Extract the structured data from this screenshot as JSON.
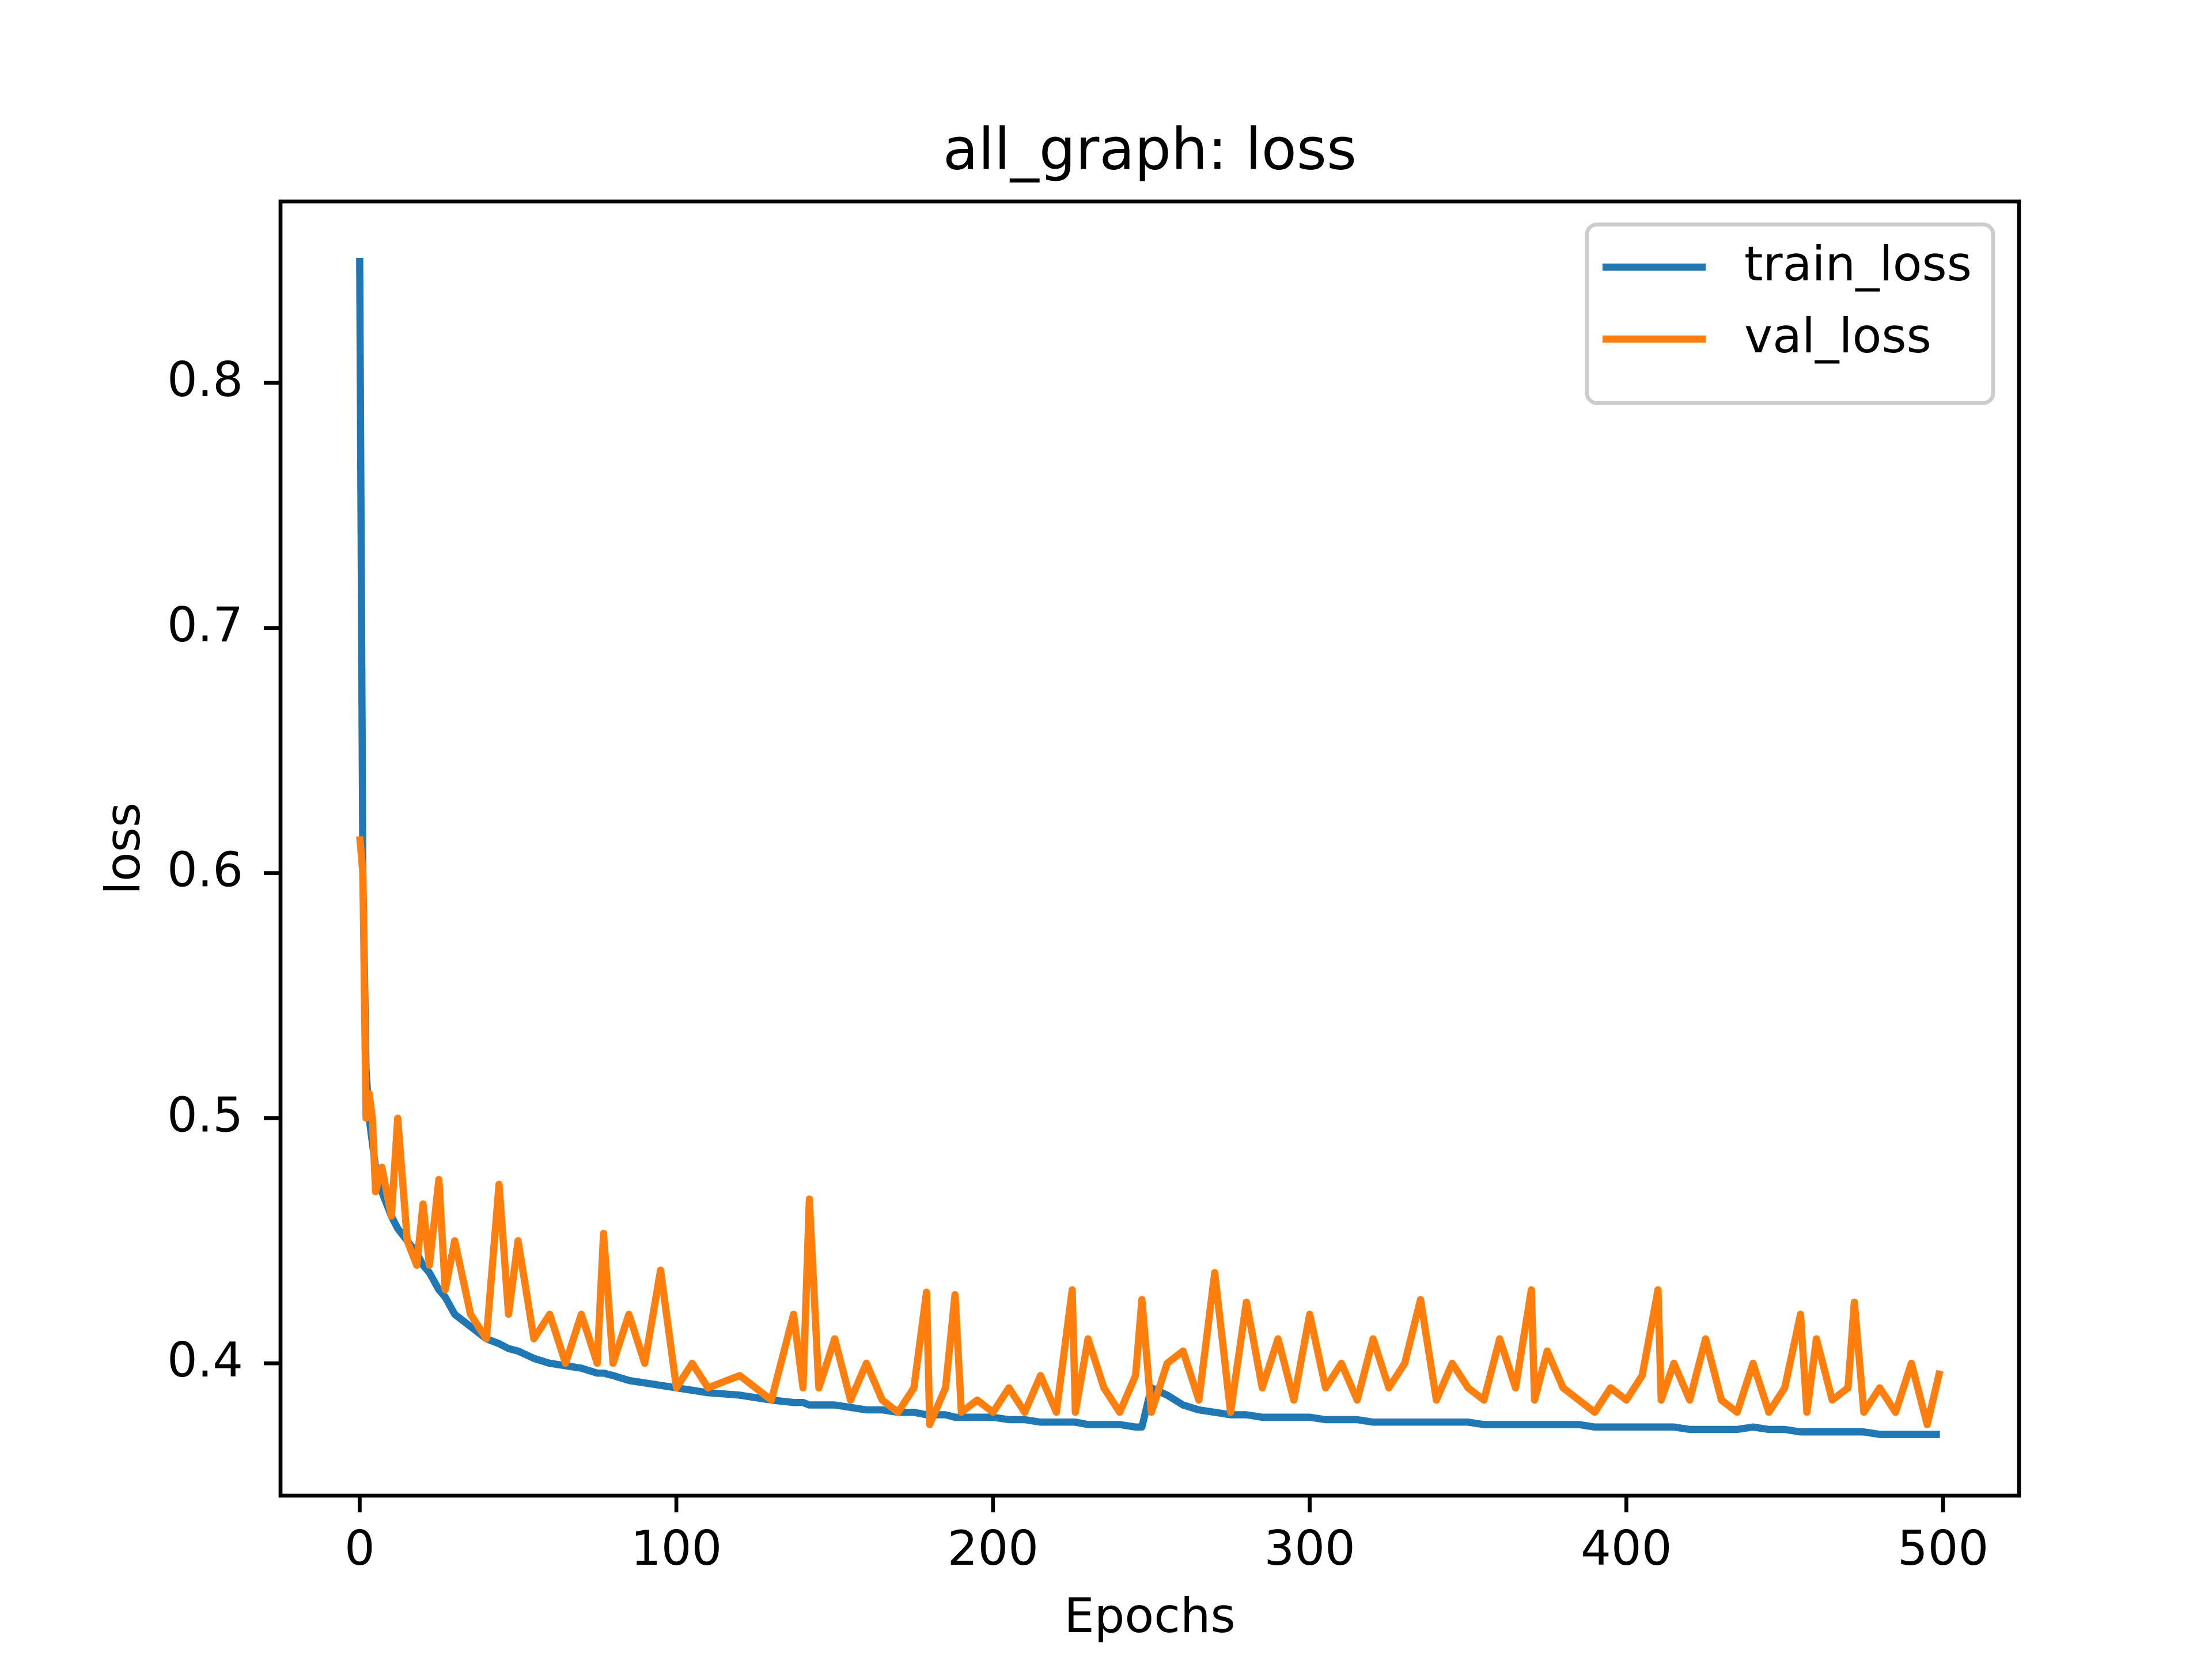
{
  "chart_data": {
    "type": "line",
    "title": "all_graph: loss",
    "xlabel": "Epochs",
    "ylabel": "loss",
    "x": [
      0,
      1,
      2,
      3,
      4,
      5,
      7,
      10,
      12,
      15,
      18,
      20,
      22,
      25,
      27,
      30,
      35,
      40,
      44,
      47,
      50,
      55,
      60,
      65,
      70,
      75,
      77,
      80,
      85,
      90,
      95,
      100,
      105,
      110,
      120,
      130,
      137,
      140,
      142,
      145,
      150,
      155,
      160,
      165,
      170,
      175,
      179,
      180,
      185,
      188,
      190,
      195,
      200,
      205,
      210,
      215,
      220,
      225,
      226,
      230,
      235,
      240,
      245,
      247,
      250,
      255,
      260,
      265,
      270,
      275,
      280,
      285,
      290,
      295,
      300,
      305,
      310,
      315,
      320,
      325,
      330,
      335,
      340,
      345,
      350,
      355,
      360,
      365,
      370,
      371,
      375,
      380,
      385,
      390,
      395,
      400,
      405,
      410,
      411,
      415,
      420,
      425,
      430,
      435,
      440,
      445,
      450,
      455,
      457,
      460,
      465,
      470,
      472,
      475,
      480,
      485,
      490,
      495,
      499
    ],
    "series": [
      {
        "name": "train_loss",
        "color": "#1f77b4",
        "values": [
          0.851,
          0.6,
          0.52,
          0.5,
          0.49,
          0.48,
          0.47,
          0.46,
          0.455,
          0.45,
          0.445,
          0.44,
          0.437,
          0.43,
          0.427,
          0.42,
          0.415,
          0.41,
          0.408,
          0.406,
          0.405,
          0.402,
          0.4,
          0.399,
          0.398,
          0.396,
          0.396,
          0.395,
          0.393,
          0.392,
          0.391,
          0.39,
          0.389,
          0.388,
          0.387,
          0.385,
          0.384,
          0.384,
          0.383,
          0.383,
          0.383,
          0.382,
          0.381,
          0.381,
          0.38,
          0.38,
          0.379,
          0.379,
          0.379,
          0.378,
          0.378,
          0.378,
          0.378,
          0.377,
          0.377,
          0.376,
          0.376,
          0.376,
          0.376,
          0.375,
          0.375,
          0.375,
          0.374,
          0.374,
          0.39,
          0.387,
          0.383,
          0.381,
          0.38,
          0.379,
          0.379,
          0.378,
          0.378,
          0.378,
          0.378,
          0.377,
          0.377,
          0.377,
          0.376,
          0.376,
          0.376,
          0.376,
          0.376,
          0.376,
          0.376,
          0.375,
          0.375,
          0.375,
          0.375,
          0.375,
          0.375,
          0.375,
          0.375,
          0.374,
          0.374,
          0.374,
          0.374,
          0.374,
          0.374,
          0.374,
          0.373,
          0.373,
          0.373,
          0.373,
          0.374,
          0.373,
          0.373,
          0.372,
          0.372,
          0.372,
          0.372,
          0.372,
          0.372,
          0.372,
          0.371,
          0.371,
          0.371,
          0.371,
          0.371
        ]
      },
      {
        "name": "val_loss",
        "color": "#ff7f0e",
        "values": [
          0.615,
          0.6,
          0.5,
          0.51,
          0.5,
          0.47,
          0.48,
          0.46,
          0.5,
          0.45,
          0.44,
          0.465,
          0.44,
          0.475,
          0.43,
          0.45,
          0.42,
          0.41,
          0.473,
          0.42,
          0.45,
          0.41,
          0.42,
          0.4,
          0.42,
          0.4,
          0.453,
          0.4,
          0.42,
          0.4,
          0.438,
          0.39,
          0.4,
          0.39,
          0.395,
          0.385,
          0.42,
          0.39,
          0.467,
          0.39,
          0.41,
          0.385,
          0.4,
          0.385,
          0.38,
          0.39,
          0.429,
          0.375,
          0.39,
          0.428,
          0.38,
          0.385,
          0.38,
          0.39,
          0.38,
          0.395,
          0.38,
          0.43,
          0.38,
          0.41,
          0.39,
          0.38,
          0.395,
          0.426,
          0.38,
          0.4,
          0.405,
          0.385,
          0.437,
          0.38,
          0.425,
          0.39,
          0.41,
          0.385,
          0.42,
          0.39,
          0.4,
          0.385,
          0.41,
          0.39,
          0.4,
          0.426,
          0.385,
          0.4,
          0.39,
          0.385,
          0.41,
          0.39,
          0.43,
          0.385,
          0.405,
          0.39,
          0.385,
          0.38,
          0.39,
          0.385,
          0.395,
          0.43,
          0.385,
          0.4,
          0.385,
          0.41,
          0.385,
          0.38,
          0.4,
          0.38,
          0.39,
          0.42,
          0.38,
          0.41,
          0.385,
          0.39,
          0.425,
          0.38,
          0.39,
          0.38,
          0.4,
          0.375,
          0.397
        ]
      }
    ],
    "xlim": [
      -25,
      524
    ],
    "ylim": [
      0.346,
      0.874
    ],
    "xticks": [
      0,
      100,
      200,
      300,
      400,
      500
    ],
    "yticks": [
      0.4,
      0.5,
      0.6,
      0.7,
      0.8
    ],
    "legend": "upper right"
  }
}
